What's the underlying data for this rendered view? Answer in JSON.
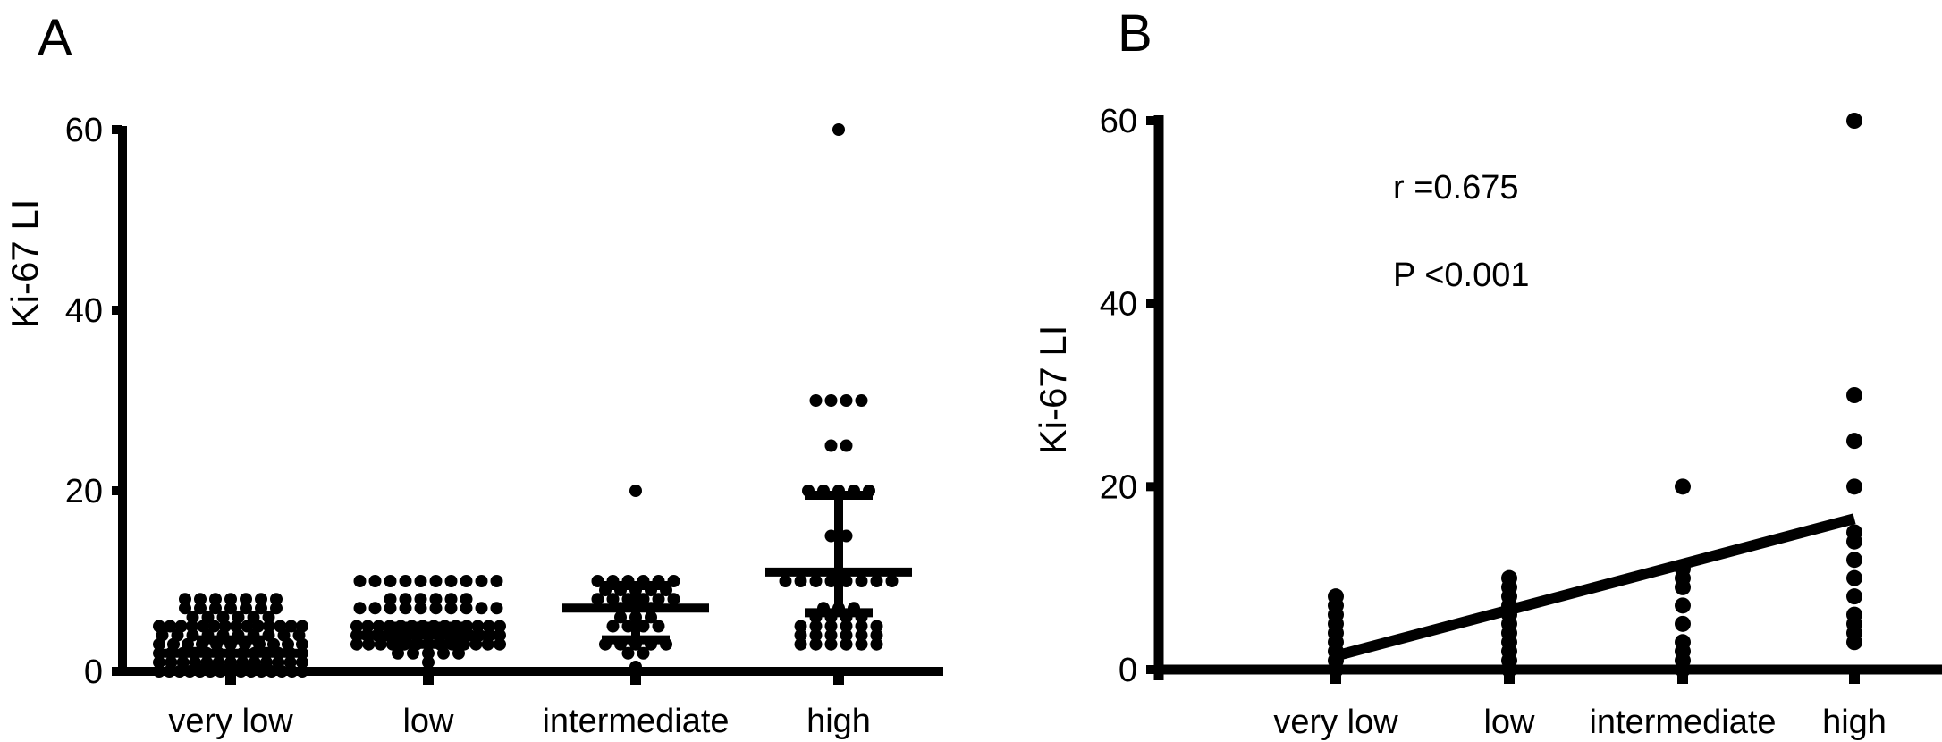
{
  "chart_data": [
    {
      "panel": "A",
      "type": "scatter",
      "ylabel": "Ki-67 LI",
      "xlabel": "",
      "ylim": [
        0,
        60
      ],
      "yticks": [
        0,
        20,
        40,
        60
      ],
      "categories": [
        "very low",
        "low",
        "intermediate",
        "high"
      ],
      "points": [
        [
          0,
          0,
          0,
          0,
          0,
          0,
          0,
          0,
          0,
          0,
          0,
          0,
          0,
          0,
          0,
          1,
          1,
          1,
          1,
          1,
          1,
          1,
          1,
          1,
          1,
          1,
          1,
          1,
          2,
          2,
          2,
          2,
          2,
          2,
          2,
          2,
          2,
          2,
          2,
          2,
          2,
          3,
          3,
          3,
          3,
          3,
          3,
          3,
          3,
          3,
          3,
          3,
          4,
          4,
          4,
          4,
          4,
          4,
          4,
          4,
          4,
          4,
          5,
          5,
          5,
          5,
          5,
          5,
          5,
          5,
          5,
          5,
          5,
          5,
          5,
          5,
          6,
          6,
          6,
          6,
          6,
          6,
          7,
          7,
          7,
          7,
          7,
          7,
          7,
          8,
          8,
          8,
          8,
          8,
          8,
          8
        ],
        [
          1,
          2,
          2,
          2,
          2,
          2,
          3,
          3,
          3,
          3,
          3,
          3,
          3,
          3,
          3,
          3,
          3,
          3,
          3,
          4,
          4,
          4,
          4,
          4,
          4,
          4,
          4,
          4,
          4,
          4,
          4,
          4,
          4,
          4,
          5,
          5,
          5,
          5,
          5,
          5,
          5,
          5,
          5,
          5,
          5,
          5,
          5,
          5,
          7,
          7,
          7,
          7,
          7,
          7,
          7,
          7,
          7,
          7,
          8,
          8,
          8,
          8,
          8,
          8,
          10,
          10,
          10,
          10,
          10,
          10,
          10,
          10,
          10,
          10
        ],
        [
          0.5,
          2,
          2,
          3,
          3,
          3,
          3,
          3,
          5,
          5,
          5,
          5,
          6,
          6,
          6,
          7,
          7,
          7,
          8,
          8,
          8,
          8,
          8,
          8,
          9,
          9,
          9,
          9,
          9,
          10,
          10,
          10,
          10,
          10,
          10,
          20
        ],
        [
          3,
          3,
          3,
          3,
          3,
          3,
          4,
          4,
          4,
          4,
          4,
          4,
          5,
          5,
          5,
          5,
          5,
          5,
          6,
          6,
          6,
          6,
          7,
          7,
          7,
          10,
          10,
          10,
          10,
          10,
          10,
          10,
          10,
          15,
          15,
          20,
          20,
          20,
          20,
          20,
          25,
          25,
          30,
          30,
          30,
          30,
          60
        ]
      ],
      "error_bars": [
        {
          "center": 2,
          "low": 0.3,
          "high": 3.5
        },
        {
          "center": 4,
          "low": 3,
          "high": 5
        },
        {
          "center": 7,
          "low": 3.5,
          "high": 9.5
        },
        {
          "center": 11,
          "low": 6.5,
          "high": 19.5
        }
      ]
    },
    {
      "panel": "B",
      "type": "scatter",
      "ylabel": "Ki-67 LI",
      "xlabel": "",
      "ylim": [
        0,
        60
      ],
      "yticks": [
        0,
        20,
        40,
        60
      ],
      "categories": [
        "very low",
        "low",
        "intermediate",
        "high"
      ],
      "points": [
        [
          0,
          1,
          2,
          3,
          4,
          5,
          6,
          7,
          8
        ],
        [
          0,
          1,
          2,
          3,
          4,
          5,
          6,
          7,
          8,
          9,
          10
        ],
        [
          0,
          1,
          2,
          3,
          5,
          7,
          9,
          10,
          11,
          20
        ],
        [
          3,
          4,
          5,
          6,
          8,
          10,
          12,
          14,
          15,
          20,
          25,
          30,
          60
        ]
      ],
      "regression_line": {
        "x_start": "very low",
        "y_start": 1.5,
        "x_end": "high",
        "y_end": 16.5
      },
      "annotations": [
        "r =0.675",
        "P <0.001"
      ]
    }
  ]
}
